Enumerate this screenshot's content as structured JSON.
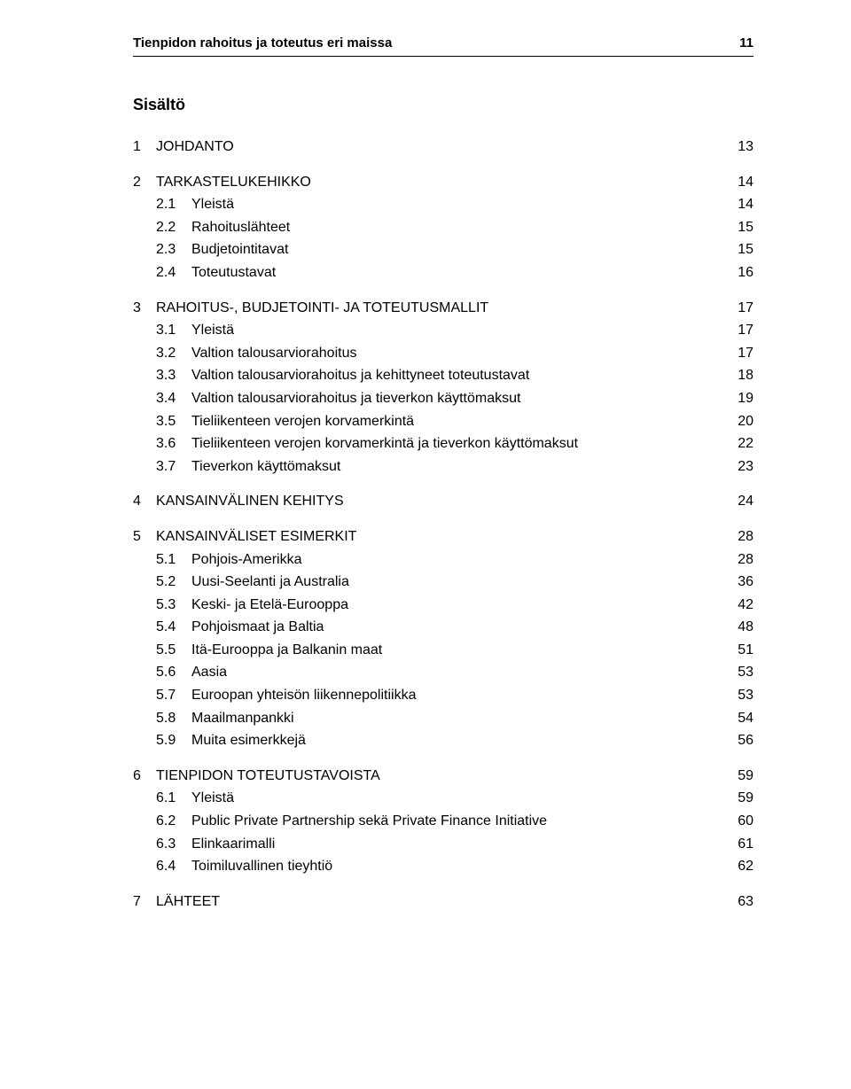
{
  "header": {
    "title": "Tienpidon rahoitus ja toteutus eri maissa",
    "page": "11"
  },
  "contents_title": "Sisältö",
  "toc": [
    {
      "num": "1",
      "title": "JOHDANTO",
      "page": "13",
      "children": []
    },
    {
      "num": "2",
      "title": "TARKASTELUKEHIKKO",
      "page": "14",
      "children": [
        {
          "num": "2.1",
          "title": "Yleistä",
          "page": "14"
        },
        {
          "num": "2.2",
          "title": "Rahoituslähteet",
          "page": "15"
        },
        {
          "num": "2.3",
          "title": "Budjetointitavat",
          "page": "15"
        },
        {
          "num": "2.4",
          "title": "Toteutustavat",
          "page": "16"
        }
      ]
    },
    {
      "num": "3",
      "title": "RAHOITUS-, BUDJETOINTI- JA TOTEUTUSMALLIT",
      "page": "17",
      "children": [
        {
          "num": "3.1",
          "title": "Yleistä",
          "page": "17"
        },
        {
          "num": "3.2",
          "title": "Valtion talousarviorahoitus",
          "page": "17"
        },
        {
          "num": "3.3",
          "title": "Valtion talousarviorahoitus ja kehittyneet toteutustavat",
          "page": "18"
        },
        {
          "num": "3.4",
          "title": "Valtion talousarviorahoitus ja tieverkon käyttömaksut",
          "page": "19"
        },
        {
          "num": "3.5",
          "title": "Tieliikenteen verojen korvamerkintä",
          "page": "20"
        },
        {
          "num": "3.6",
          "title": "Tieliikenteen verojen korvamerkintä ja tieverkon käyttömaksut",
          "page": "22"
        },
        {
          "num": "3.7",
          "title": "Tieverkon käyttömaksut",
          "page": "23"
        }
      ]
    },
    {
      "num": "4",
      "title": "KANSAINVÄLINEN KEHITYS",
      "page": "24",
      "children": []
    },
    {
      "num": "5",
      "title": "KANSAINVÄLISET ESIMERKIT",
      "page": "28",
      "children": [
        {
          "num": "5.1",
          "title": "Pohjois-Amerikka",
          "page": "28"
        },
        {
          "num": "5.2",
          "title": "Uusi-Seelanti ja Australia",
          "page": "36"
        },
        {
          "num": "5.3",
          "title": "Keski- ja Etelä-Eurooppa",
          "page": "42"
        },
        {
          "num": "5.4",
          "title": "Pohjoismaat ja Baltia",
          "page": "48"
        },
        {
          "num": "5.5",
          "title": "Itä-Eurooppa ja Balkanin maat",
          "page": "51"
        },
        {
          "num": "5.6",
          "title": "Aasia",
          "page": "53"
        },
        {
          "num": "5.7",
          "title": "Euroopan yhteisön liikennepolitiikka",
          "page": "53"
        },
        {
          "num": "5.8",
          "title": "Maailmanpankki",
          "page": "54"
        },
        {
          "num": "5.9",
          "title": "Muita esimerkkejä",
          "page": "56"
        }
      ]
    },
    {
      "num": "6",
      "title": "TIENPIDON TOTEUTUSTAVOISTA",
      "page": "59",
      "children": [
        {
          "num": "6.1",
          "title": "Yleistä",
          "page": "59"
        },
        {
          "num": "6.2",
          "title": "Public Private Partnership sekä Private Finance Initiative",
          "page": "60"
        },
        {
          "num": "6.3",
          "title": "Elinkaarimalli",
          "page": "61"
        },
        {
          "num": "6.4",
          "title": "Toimiluvallinen tieyhtiö",
          "page": "62"
        }
      ]
    },
    {
      "num": "7",
      "title": "LÄHTEET",
      "page": "63",
      "children": []
    }
  ]
}
